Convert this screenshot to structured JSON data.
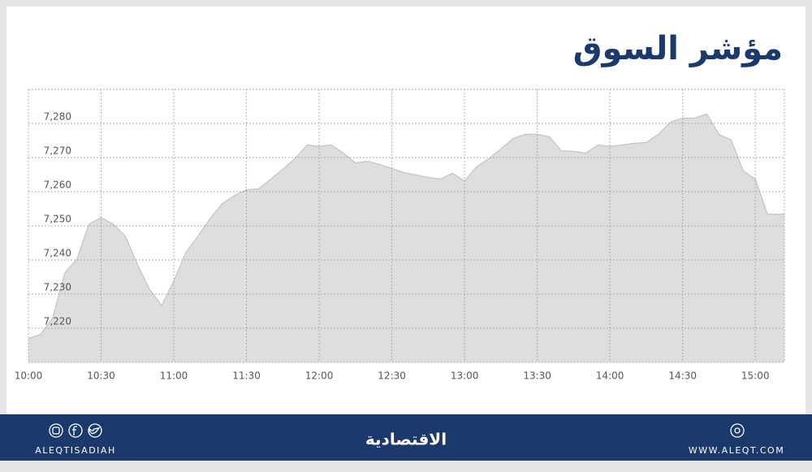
{
  "chart_data": {
    "type": "area",
    "title": "مؤشر السوق",
    "color": "#e0dedd",
    "line_color": "#c4c1c0",
    "x": [
      "10:00",
      "10:05",
      "10:10",
      "10:15",
      "10:20",
      "10:25",
      "10:30",
      "10:35",
      "10:40",
      "10:45",
      "10:50",
      "10:55",
      "11:00",
      "11:05",
      "11:10",
      "11:15",
      "11:20",
      "11:25",
      "11:30",
      "11:35",
      "11:40",
      "11:45",
      "11:50",
      "11:55",
      "12:00",
      "12:05",
      "12:10",
      "12:15",
      "12:20",
      "12:25",
      "12:30",
      "12:35",
      "12:40",
      "12:45",
      "12:50",
      "12:55",
      "13:00",
      "13:05",
      "13:10",
      "13:15",
      "13:20",
      "13:25",
      "13:30",
      "13:35",
      "13:40",
      "13:45",
      "13:50",
      "13:55",
      "14:00",
      "14:05",
      "14:10",
      "14:15",
      "14:20",
      "14:25",
      "14:30",
      "14:35",
      "14:40",
      "14:45",
      "14:50",
      "14:55",
      "15:00",
      "15:05",
      "15:10",
      "15:12"
    ],
    "values": [
      7217.0,
      7218.2,
      7223.0,
      7236.2,
      7240.2,
      7250.5,
      7252.4,
      7250.5,
      7247.0,
      7238.6,
      7231.4,
      7226.6,
      7233.8,
      7242.2,
      7247.0,
      7252.2,
      7256.5,
      7258.9,
      7260.6,
      7260.8,
      7263.7,
      7266.6,
      7269.7,
      7273.7,
      7273.3,
      7273.7,
      7271.3,
      7268.5,
      7268.9,
      7268.0,
      7266.8,
      7265.6,
      7264.9,
      7264.2,
      7263.7,
      7265.4,
      7263.2,
      7267.3,
      7269.7,
      7272.5,
      7275.6,
      7276.8,
      7276.8,
      7276.1,
      7272.0,
      7271.8,
      7271.3,
      7273.7,
      7273.3,
      7273.7,
      7274.2,
      7274.4,
      7276.8,
      7280.4,
      7281.6,
      7281.6,
      7282.8,
      7276.8,
      7275.2,
      7266.1,
      7263.7,
      7253.4,
      7253.4,
      7253.4
    ],
    "xlim": [
      "10:00",
      "15:12"
    ],
    "xticks": [
      "10:00",
      "10:30",
      "11:00",
      "11:30",
      "12:00",
      "12:30",
      "13:00",
      "13:30",
      "14:00",
      "14:30",
      "15:00"
    ],
    "ylim": [
      7210,
      7290
    ],
    "yticks": [
      {
        "value": 7220,
        "label": "7,220"
      },
      {
        "value": 7230,
        "label": "7,230"
      },
      {
        "value": 7240,
        "label": "7,240"
      },
      {
        "value": 7250,
        "label": "7,250"
      },
      {
        "value": 7260,
        "label": "7,260"
      },
      {
        "value": 7270,
        "label": "7,270"
      },
      {
        "value": 7280,
        "label": "7,280"
      }
    ],
    "grid": true
  },
  "footer": {
    "handle": "ALEQTISADIAH",
    "logo": "الاقتصادية",
    "website": "WWW.ALEQT.COM"
  }
}
